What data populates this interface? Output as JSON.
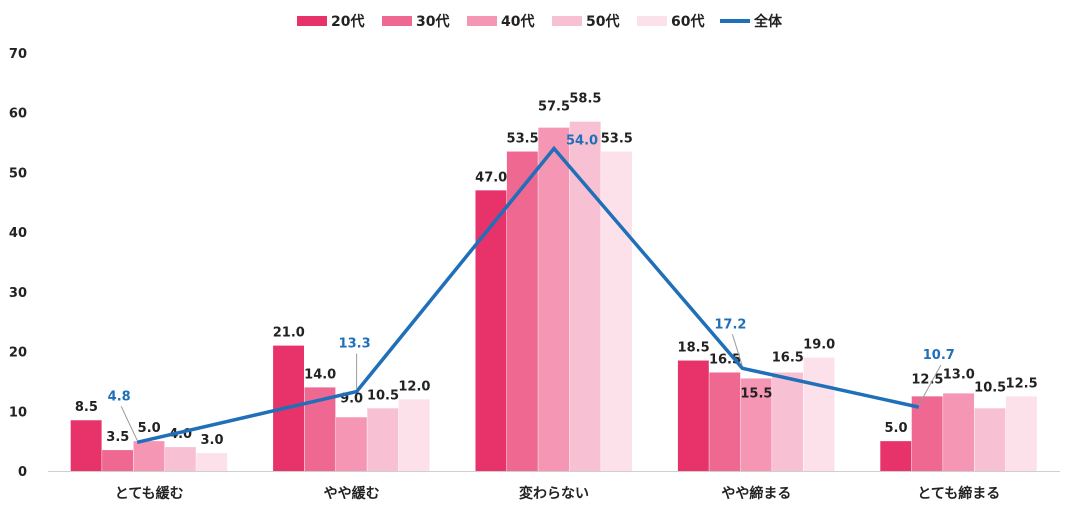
{
  "chart_data": {
    "type": "bar",
    "categories": [
      "とても緩む",
      "やや緩む",
      "変わらない",
      "やや締まる",
      "とても締まる"
    ],
    "series": [
      {
        "name": "20代",
        "color": "#E8336A",
        "values": [
          8.5,
          21.0,
          47.0,
          18.5,
          5.0
        ]
      },
      {
        "name": "30代",
        "color": "#EE6892",
        "values": [
          3.5,
          14.0,
          53.5,
          16.5,
          12.5
        ]
      },
      {
        "name": "40代",
        "color": "#F496B4",
        "values": [
          5.0,
          9.0,
          57.5,
          15.5,
          13.0
        ]
      },
      {
        "name": "50代",
        "color": "#F8C0D3",
        "values": [
          4.0,
          10.5,
          58.5,
          16.5,
          10.5
        ]
      },
      {
        "name": "60代",
        "color": "#FCE1EA",
        "values": [
          3.0,
          12.0,
          53.5,
          19.0,
          12.5
        ]
      }
    ],
    "line_series": {
      "name": "全体",
      "color": "#1F6FB9",
      "values": [
        4.8,
        13.3,
        54.0,
        17.2,
        10.7
      ]
    },
    "bar_labels": [
      [
        "8.5",
        "3.5",
        "5.0",
        "4.0",
        "3.0"
      ],
      [
        "21.0",
        "14.0",
        "9.0",
        "10.5",
        "12.0"
      ],
      [
        "47.0",
        "53.5",
        "57.5",
        "58.5",
        "53.5"
      ],
      [
        "18.5",
        "16.5",
        "15.5",
        "16.5",
        "19.0"
      ],
      [
        "5.0",
        "12.5",
        "13.0",
        "10.5",
        "12.5"
      ]
    ],
    "line_labels": [
      "4.8",
      "13.3",
      "54.0",
      "17.2",
      "10.7"
    ],
    "y_ticks": [
      "0",
      "10",
      "20",
      "30",
      "40",
      "50",
      "60",
      "70"
    ],
    "ylim": [
      0,
      70
    ],
    "legend_position": "top-center",
    "grid": false
  }
}
